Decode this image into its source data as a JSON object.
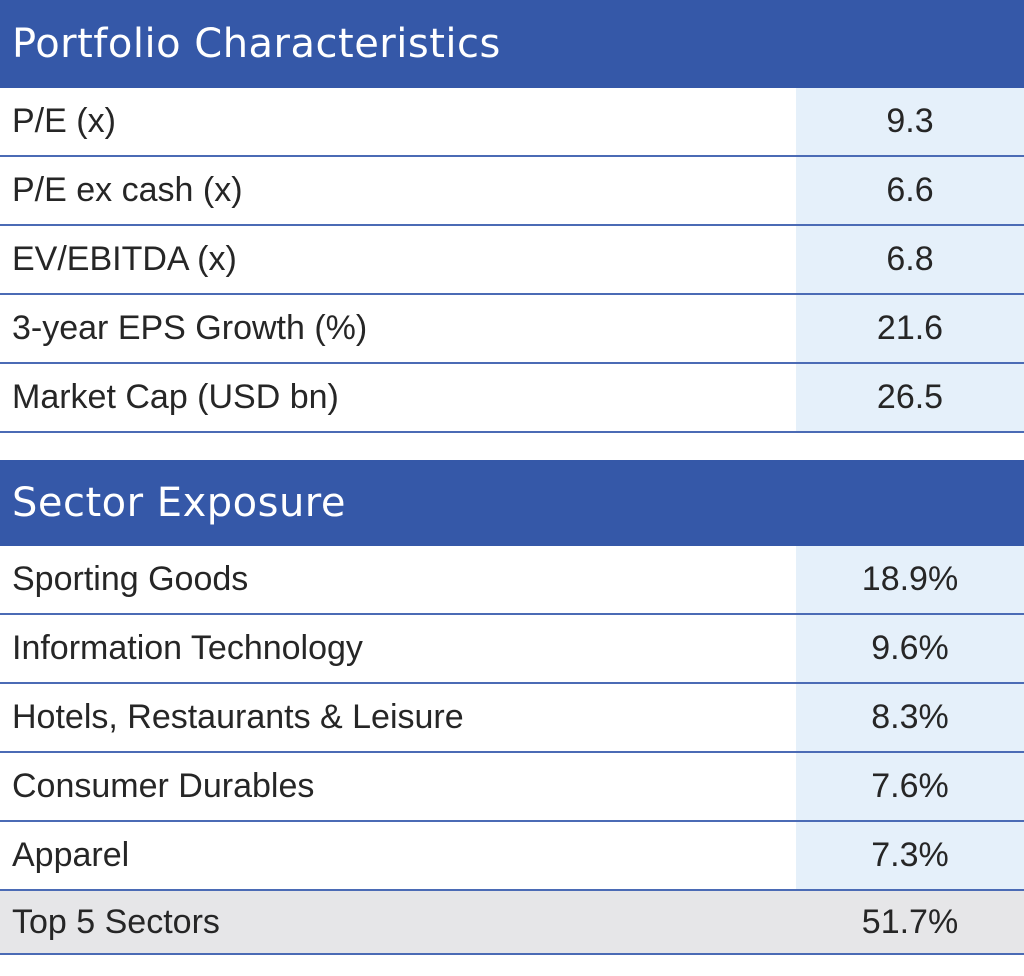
{
  "portfolio": {
    "title": "Portfolio Characteristics",
    "rows": [
      {
        "label": "P/E (x)",
        "value": "9.3"
      },
      {
        "label": "P/E ex cash (x)",
        "value": "6.6"
      },
      {
        "label": "EV/EBITDA (x)",
        "value": "6.8"
      },
      {
        "label": "3-year EPS Growth (%)",
        "value": "21.6"
      },
      {
        "label": "Market Cap (USD bn)",
        "value": "26.5"
      }
    ]
  },
  "sectors": {
    "title": "Sector Exposure",
    "rows": [
      {
        "label": "Sporting Goods",
        "value": "18.9%"
      },
      {
        "label": "Information Technology",
        "value": "9.6%"
      },
      {
        "label": "Hotels, Restaurants & Leisure",
        "value": "8.3%"
      },
      {
        "label": "Consumer Durables",
        "value": "7.6%"
      },
      {
        "label": "Apparel",
        "value": "7.3%"
      }
    ],
    "total": {
      "label": "Top 5 Sectors",
      "value": "51.7%"
    }
  },
  "colors": {
    "header_bg": "#3558a8",
    "value_bg": "#e5f0fa",
    "total_bg": "#e6e6e8",
    "rule": "#4b6bb5"
  }
}
